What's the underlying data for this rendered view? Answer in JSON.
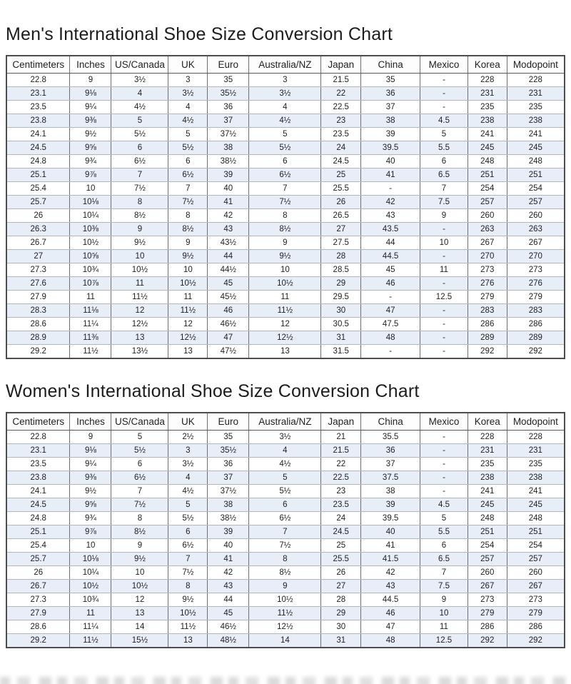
{
  "mens_chart": {
    "title": "Men's International Shoe Size Conversion Chart",
    "columns": [
      "Centimeters",
      "Inches",
      "US/Canada",
      "UK",
      "Euro",
      "Australia/NZ",
      "Japan",
      "China",
      "Mexico",
      "Korea",
      "Modopoint"
    ],
    "rows": [
      [
        "22.8",
        "9",
        "3½",
        "3",
        "35",
        "3",
        "21.5",
        "35",
        "-",
        "228",
        "228"
      ],
      [
        "23.1",
        "9⅛",
        "4",
        "3½",
        "35½",
        "3½",
        "22",
        "36",
        "-",
        "231",
        "231"
      ],
      [
        "23.5",
        "9¼",
        "4½",
        "4",
        "36",
        "4",
        "22.5",
        "37",
        "-",
        "235",
        "235"
      ],
      [
        "23.8",
        "9⅜",
        "5",
        "4½",
        "37",
        "4½",
        "23",
        "38",
        "4.5",
        "238",
        "238"
      ],
      [
        "24.1",
        "9½",
        "5½",
        "5",
        "37½",
        "5",
        "23.5",
        "39",
        "5",
        "241",
        "241"
      ],
      [
        "24.5",
        "9⅝",
        "6",
        "5½",
        "38",
        "5½",
        "24",
        "39.5",
        "5.5",
        "245",
        "245"
      ],
      [
        "24.8",
        "9¾",
        "6½",
        "6",
        "38½",
        "6",
        "24.5",
        "40",
        "6",
        "248",
        "248"
      ],
      [
        "25.1",
        "9⅞",
        "7",
        "6½",
        "39",
        "6½",
        "25",
        "41",
        "6.5",
        "251",
        "251"
      ],
      [
        "25.4",
        "10",
        "7½",
        "7",
        "40",
        "7",
        "25.5",
        "-",
        "7",
        "254",
        "254"
      ],
      [
        "25.7",
        "10⅛",
        "8",
        "7½",
        "41",
        "7½",
        "26",
        "42",
        "7.5",
        "257",
        "257"
      ],
      [
        "26",
        "10¼",
        "8½",
        "8",
        "42",
        "8",
        "26.5",
        "43",
        "9",
        "260",
        "260"
      ],
      [
        "26.3",
        "10⅜",
        "9",
        "8½",
        "43",
        "8½",
        "27",
        "43.5",
        "-",
        "263",
        "263"
      ],
      [
        "26.7",
        "10½",
        "9½",
        "9",
        "43½",
        "9",
        "27.5",
        "44",
        "10",
        "267",
        "267"
      ],
      [
        "27",
        "10⅝",
        "10",
        "9½",
        "44",
        "9½",
        "28",
        "44.5",
        "-",
        "270",
        "270"
      ],
      [
        "27.3",
        "10¾",
        "10½",
        "10",
        "44½",
        "10",
        "28.5",
        "45",
        "11",
        "273",
        "273"
      ],
      [
        "27.6",
        "10⅞",
        "11",
        "10½",
        "45",
        "10½",
        "29",
        "46",
        "-",
        "276",
        "276"
      ],
      [
        "27.9",
        "11",
        "11½",
        "11",
        "45½",
        "11",
        "29.5",
        "-",
        "12.5",
        "279",
        "279"
      ],
      [
        "28.3",
        "11⅛",
        "12",
        "11½",
        "46",
        "11½",
        "30",
        "47",
        "-",
        "283",
        "283"
      ],
      [
        "28.6",
        "11¼",
        "12½",
        "12",
        "46½",
        "12",
        "30.5",
        "47.5",
        "-",
        "286",
        "286"
      ],
      [
        "28.9",
        "11⅜",
        "13",
        "12½",
        "47",
        "12½",
        "31",
        "48",
        "-",
        "289",
        "289"
      ],
      [
        "29.2",
        "11½",
        "13½",
        "13",
        "47½",
        "13",
        "31.5",
        "-",
        "-",
        "292",
        "292"
      ]
    ]
  },
  "womens_chart": {
    "title": "Women's International Shoe Size Conversion Chart",
    "columns": [
      "Centimeters",
      "Inches",
      "US/Canada",
      "UK",
      "Euro",
      "Australia/NZ",
      "Japan",
      "China",
      "Mexico",
      "Korea",
      "Modopoint"
    ],
    "rows": [
      [
        "22.8",
        "9",
        "5",
        "2½",
        "35",
        "3½",
        "21",
        "35.5",
        "-",
        "228",
        "228"
      ],
      [
        "23.1",
        "9⅛",
        "5½",
        "3",
        "35½",
        "4",
        "21.5",
        "36",
        "-",
        "231",
        "231"
      ],
      [
        "23.5",
        "9¼",
        "6",
        "3½",
        "36",
        "4½",
        "22",
        "37",
        "-",
        "235",
        "235"
      ],
      [
        "23.8",
        "9⅜",
        "6½",
        "4",
        "37",
        "5",
        "22.5",
        "37.5",
        "-",
        "238",
        "238"
      ],
      [
        "24.1",
        "9½",
        "7",
        "4½",
        "37½",
        "5½",
        "23",
        "38",
        "-",
        "241",
        "241"
      ],
      [
        "24.5",
        "9⅝",
        "7½",
        "5",
        "38",
        "6",
        "23.5",
        "39",
        "4.5",
        "245",
        "245"
      ],
      [
        "24.8",
        "9¾",
        "8",
        "5½",
        "38½",
        "6½",
        "24",
        "39.5",
        "5",
        "248",
        "248"
      ],
      [
        "25.1",
        "9⅞",
        "8½",
        "6",
        "39",
        "7",
        "24.5",
        "40",
        "5.5",
        "251",
        "251"
      ],
      [
        "25.4",
        "10",
        "9",
        "6½",
        "40",
        "7½",
        "25",
        "41",
        "6",
        "254",
        "254"
      ],
      [
        "25.7",
        "10⅛",
        "9½",
        "7",
        "41",
        "8",
        "25.5",
        "41.5",
        "6.5",
        "257",
        "257"
      ],
      [
        "26",
        "10¼",
        "10",
        "7½",
        "42",
        "8½",
        "26",
        "42",
        "7",
        "260",
        "260"
      ],
      [
        "26.7",
        "10½",
        "10½",
        "8",
        "43",
        "9",
        "27",
        "43",
        "7.5",
        "267",
        "267"
      ],
      [
        "27.3",
        "10¾",
        "12",
        "9½",
        "44",
        "10½",
        "28",
        "44.5",
        "9",
        "273",
        "273"
      ],
      [
        "27.9",
        "11",
        "13",
        "10½",
        "45",
        "11½",
        "29",
        "46",
        "10",
        "279",
        "279"
      ],
      [
        "28.6",
        "11¼",
        "14",
        "11½",
        "46½",
        "12½",
        "30",
        "47",
        "11",
        "286",
        "286"
      ],
      [
        "29.2",
        "11½",
        "15½",
        "13",
        "48½",
        "14",
        "31",
        "48",
        "12.5",
        "292",
        "292"
      ]
    ]
  },
  "colors": {
    "alt_row": "#e7eef8",
    "table_border": "#4d4d4d",
    "grid_vertical": "#6f6f6f",
    "grid_horizontal": "#b0b7bf",
    "text": "#1f1f1f"
  }
}
